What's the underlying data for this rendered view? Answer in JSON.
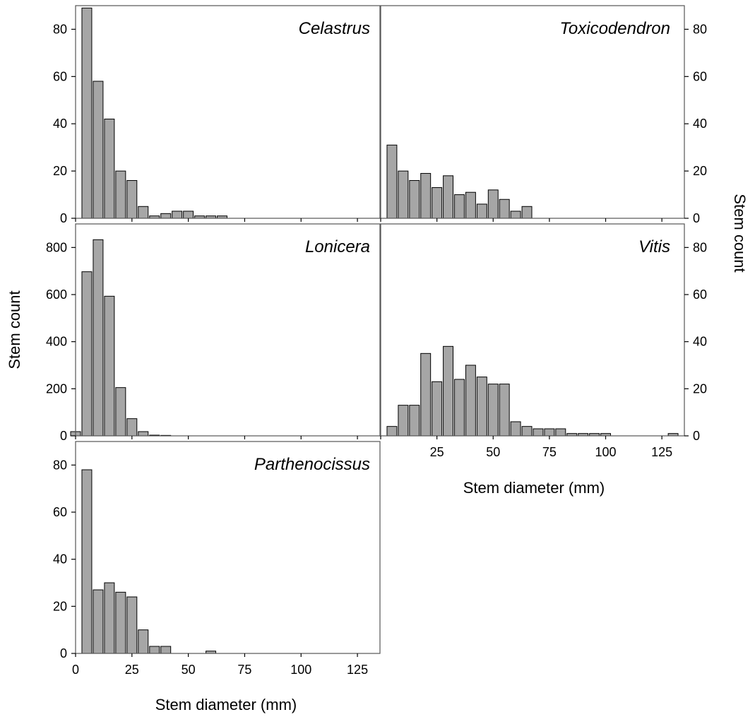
{
  "chart_data": [
    {
      "type": "bar",
      "title": "Celastrus",
      "bin_width": 5,
      "x": [
        5,
        10,
        15,
        20,
        25,
        30,
        35,
        40,
        45,
        50,
        55,
        60,
        65
      ],
      "values": [
        89,
        58,
        42,
        20,
        16,
        5,
        1,
        2,
        3,
        3,
        1,
        1,
        1
      ],
      "xlim": [
        0,
        135
      ],
      "ylim": [
        0,
        90
      ],
      "yticks": [
        0,
        20,
        40,
        60,
        80
      ],
      "y_axis": "left"
    },
    {
      "type": "bar",
      "title": "Toxicodendron",
      "bin_width": 5,
      "x": [
        5,
        10,
        15,
        20,
        25,
        30,
        35,
        40,
        45,
        50,
        55,
        60,
        65
      ],
      "values": [
        31,
        20,
        16,
        19,
        13,
        18,
        10,
        11,
        6,
        12,
        8,
        3,
        5
      ],
      "xlim": [
        0,
        135
      ],
      "ylim": [
        0,
        90
      ],
      "yticks": [
        0,
        20,
        40,
        60,
        80
      ],
      "y_axis": "right"
    },
    {
      "type": "bar",
      "title": "Lonicera",
      "bin_width": 5,
      "x": [
        0,
        5,
        10,
        15,
        20,
        25,
        30,
        35,
        40
      ],
      "values": [
        18,
        697,
        833,
        593,
        205,
        73,
        18,
        3,
        2
      ],
      "xlim": [
        0,
        135
      ],
      "ylim": [
        0,
        900
      ],
      "yticks": [
        0,
        200,
        400,
        600,
        800
      ],
      "y_axis": "left"
    },
    {
      "type": "bar",
      "title": "Vitis",
      "bin_width": 5,
      "x": [
        5,
        10,
        15,
        20,
        25,
        30,
        35,
        40,
        45,
        50,
        55,
        60,
        65,
        70,
        75,
        80,
        85,
        90,
        95,
        100,
        130
      ],
      "values": [
        4,
        13,
        13,
        35,
        23,
        38,
        24,
        30,
        25,
        22,
        22,
        6,
        4,
        3,
        3,
        3,
        1,
        1,
        1,
        1,
        1
      ],
      "xlim": [
        0,
        135
      ],
      "ylim": [
        0,
        90
      ],
      "yticks": [
        0,
        20,
        40,
        60,
        80
      ],
      "xticks": [
        25,
        50,
        75,
        100,
        125
      ],
      "y_axis": "right"
    },
    {
      "type": "bar",
      "title": "Parthenocissus",
      "bin_width": 5,
      "x": [
        5,
        10,
        15,
        20,
        25,
        30,
        35,
        40,
        60
      ],
      "values": [
        78,
        27,
        30,
        26,
        24,
        10,
        3,
        3,
        1
      ],
      "xlim": [
        0,
        135
      ],
      "ylim": [
        0,
        90
      ],
      "yticks": [
        0,
        20,
        40,
        60,
        80
      ],
      "xticks": [
        0,
        25,
        50,
        75,
        100,
        125
      ],
      "y_axis": "left"
    }
  ],
  "left_ylabel": "Stem count",
  "right_ylabel": "Stem count",
  "left_xlabel": "Stem diameter (mm)",
  "right_xlabel": "Stem diameter (mm)"
}
